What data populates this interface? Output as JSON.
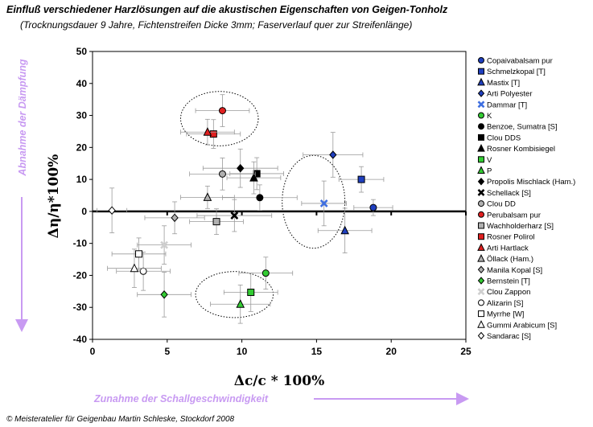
{
  "chart_data": {
    "type": "scatter",
    "title": "Einfluß verschiedener Harzlösungen auf die akustischen Eigenschaften von Geigen-Tonholz",
    "subtitle": "(Trocknungsdauer 9 Jahre, Fichtenstreifen Dicke 3mm; Faserverlauf quer zur Streifenlänge)",
    "xlabel": "Δc/c * 100%",
    "ylabel": "Δη/η*100%",
    "xlim": [
      0,
      25
    ],
    "ylim": [
      -40,
      50
    ],
    "x_ticks": [
      0,
      5,
      10,
      15,
      20,
      25
    ],
    "y_ticks": [
      -40,
      -30,
      -20,
      -10,
      0,
      10,
      20,
      30,
      40,
      50
    ],
    "grid": false,
    "legend_position": "right",
    "annotations": {
      "y_note": "Abnahme der Dämpfung",
      "x_note": "Zunahme der Schallgeschwindigkeit",
      "note_color": "#c89af2"
    },
    "series": [
      {
        "name": "Copaivabalsam pur",
        "marker": "circle",
        "color": "#1f3fbf",
        "x": 18.8,
        "y": 1.2,
        "xerr": 1.3,
        "yerr": 2.5
      },
      {
        "name": "Schmelzkopal [T]",
        "marker": "square",
        "color": "#1f3fbf",
        "x": 18.0,
        "y": 10.0,
        "xerr": 1.5,
        "yerr": 4.0
      },
      {
        "name": "Mastix [T]",
        "marker": "triangle",
        "color": "#1f3fbf",
        "x": 16.9,
        "y": -6.0,
        "xerr": 1.8,
        "yerr": 7.0
      },
      {
        "name": "Arti Polyester",
        "marker": "diamond",
        "color": "#1f3fbf",
        "x": 16.1,
        "y": 17.7,
        "xerr": 2.0,
        "yerr": 7.0
      },
      {
        "name": "Dammar [T]",
        "marker": "cross",
        "color": "#3f6fe0",
        "x": 15.5,
        "y": 2.5,
        "xerr": 1.5,
        "yerr": 7.0
      },
      {
        "name": "K",
        "marker": "circle",
        "color": "#33cc33",
        "x": 11.6,
        "y": -19.3,
        "xerr": 1.8,
        "yerr": 5.0
      },
      {
        "name": "Benzoe, Sumatra [S]",
        "marker": "circle",
        "color": "#000000",
        "x": 11.2,
        "y": 4.3,
        "xerr": 2.5,
        "yerr": 4.0
      },
      {
        "name": "Clou DDS",
        "marker": "square",
        "color": "#000000",
        "x": 11.0,
        "y": 11.8,
        "xerr": 1.8,
        "yerr": 5.0
      },
      {
        "name": "Rosner Kombisiegel",
        "marker": "triangle",
        "color": "#000000",
        "x": 10.8,
        "y": 10.5,
        "xerr": 1.8,
        "yerr": 5.0
      },
      {
        "name": "V",
        "marker": "square",
        "color": "#33cc33",
        "x": 10.6,
        "y": -25.3,
        "xerr": 1.8,
        "yerr": 6.0
      },
      {
        "name": "P",
        "marker": "triangle",
        "color": "#33cc33",
        "x": 9.9,
        "y": -29.0,
        "xerr": 2.0,
        "yerr": 6.0
      },
      {
        "name": "Propolis Mischlack (Ham.)",
        "marker": "diamond",
        "color": "#000000",
        "x": 9.9,
        "y": 13.5,
        "xerr": 2.5,
        "yerr": 6.0
      },
      {
        "name": "Schellack [S]",
        "marker": "cross",
        "color": "#000000",
        "x": 9.5,
        "y": -1.3,
        "xerr": 2.5,
        "yerr": 5.0
      },
      {
        "name": "Clou DD",
        "marker": "circle",
        "color": "#b0b0b0",
        "x": 8.7,
        "y": 11.7,
        "xerr": 2.2,
        "yerr": 5.0
      },
      {
        "name": "Perubalsam pur",
        "marker": "circle",
        "color": "#e02020",
        "x": 8.7,
        "y": 31.5,
        "xerr": 1.8,
        "yerr": 5.0
      },
      {
        "name": "Wachholderharz [S]",
        "marker": "square",
        "color": "#b0b0b0",
        "x": 8.3,
        "y": -3.2,
        "xerr": 1.8,
        "yerr": 4.0
      },
      {
        "name": "Rosner Polirol",
        "marker": "square",
        "color": "#e02020",
        "x": 8.1,
        "y": 24.2,
        "xerr": 1.8,
        "yerr": 4.5
      },
      {
        "name": "Arti Hartlack",
        "marker": "triangle",
        "color": "#e02020",
        "x": 7.7,
        "y": 24.8,
        "xerr": 1.8,
        "yerr": 4.0
      },
      {
        "name": "Öllack (Ham.)",
        "marker": "triangle",
        "color": "#b0b0b0",
        "x": 7.7,
        "y": 4.4,
        "xerr": 1.8,
        "yerr": 3.5
      },
      {
        "name": "Manila Kopal [S]",
        "marker": "diamond",
        "color": "#b0b0b0",
        "x": 5.5,
        "y": -2.0,
        "xerr": 2.0,
        "yerr": 5.0
      },
      {
        "name": "Bernstein [T]",
        "marker": "diamond",
        "color": "#33cc33",
        "x": 4.8,
        "y": -26.0,
        "xerr": 1.8,
        "yerr": 7.0
      },
      {
        "name": "Clou Zappon",
        "marker": "cross",
        "color": "#d8d8d8",
        "x": 4.8,
        "y": -10.5,
        "xerr": 1.8,
        "yerr": 6.0
      },
      {
        "name": "Alizarin [S]",
        "marker": "circle",
        "color": "#ffffff",
        "x": 3.4,
        "y": -18.7,
        "xerr": 1.8,
        "yerr": 6.0
      },
      {
        "name": "Myrrhe [W]",
        "marker": "square",
        "color": "#ffffff",
        "x": 3.1,
        "y": -13.3,
        "xerr": 1.8,
        "yerr": 5.0
      },
      {
        "name": "Gummi Arabicum [S]",
        "marker": "triangle",
        "color": "#ffffff",
        "x": 2.8,
        "y": -17.8,
        "xerr": 1.8,
        "yerr": 6.0
      },
      {
        "name": "Sandarac [S]",
        "marker": "diamond",
        "color": "#ffffff",
        "x": 1.3,
        "y": 0.3,
        "xerr": 1.0,
        "yerr": 7.0
      }
    ]
  },
  "footer": "© Meisteratelier für Geigenbau Martin Schleske, Stockdorf 2008"
}
